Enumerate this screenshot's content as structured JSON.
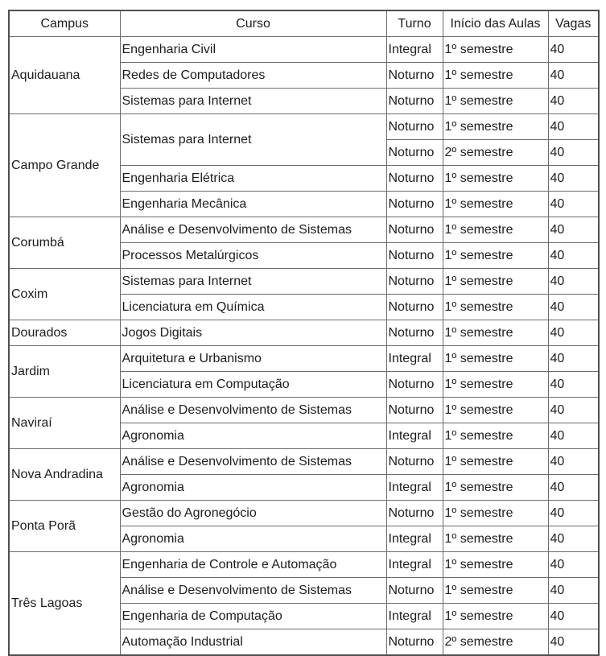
{
  "table": {
    "columns": [
      "Campus",
      "Curso",
      "Turno",
      "Início das Aulas",
      "Vagas"
    ],
    "groups": [
      {
        "campus": "Aquidauana",
        "rows": [
          {
            "curso": "Engenharia Civil",
            "turno": "Integral",
            "inicio": "1º semestre",
            "vagas": "40"
          },
          {
            "curso": "Redes de Computadores",
            "turno": "Noturno",
            "inicio": "1º semestre",
            "vagas": "40"
          },
          {
            "curso": "Sistemas para Internet",
            "turno": "Noturno",
            "inicio": "1º semestre",
            "vagas": "40"
          }
        ]
      },
      {
        "campus": "Campo Grande",
        "rows": [
          {
            "curso": "Sistemas para Internet",
            "curso_rowspan": 2,
            "turno": "Noturno",
            "inicio": "1º semestre",
            "vagas": "40"
          },
          {
            "curso": null,
            "turno": "Noturno",
            "inicio": "2º semestre",
            "vagas": "40"
          },
          {
            "curso": "Engenharia Elétrica",
            "turno": "Noturno",
            "inicio": "1º semestre",
            "vagas": "40"
          },
          {
            "curso": "Engenharia Mecânica",
            "turno": "Noturno",
            "inicio": "1º semestre",
            "vagas": "40"
          }
        ]
      },
      {
        "campus": "Corumbá",
        "rows": [
          {
            "curso": "Análise e Desenvolvimento de Sistemas",
            "turno": "Noturno",
            "inicio": "1º semestre",
            "vagas": "40"
          },
          {
            "curso": "Processos Metalúrgicos",
            "turno": "Noturno",
            "inicio": "1º semestre",
            "vagas": "40"
          }
        ]
      },
      {
        "campus": "Coxim",
        "rows": [
          {
            "curso": "Sistemas para Internet",
            "turno": "Noturno",
            "inicio": "1º semestre",
            "vagas": "40"
          },
          {
            "curso": "Licenciatura em Química",
            "turno": "Noturno",
            "inicio": "1º semestre",
            "vagas": "40"
          }
        ]
      },
      {
        "campus": "Dourados",
        "rows": [
          {
            "curso": "Jogos Digitais",
            "turno": "Noturno",
            "inicio": "1º semestre",
            "vagas": "40"
          }
        ]
      },
      {
        "campus": "Jardim",
        "rows": [
          {
            "curso": "Arquitetura e Urbanismo",
            "turno": "Integral",
            "inicio": "1º semestre",
            "vagas": "40"
          },
          {
            "curso": "Licenciatura em Computação",
            "turno": "Noturno",
            "inicio": "1º semestre",
            "vagas": "40"
          }
        ]
      },
      {
        "campus": "Naviraí",
        "rows": [
          {
            "curso": "Análise e Desenvolvimento de Sistemas",
            "turno": "Noturno",
            "inicio": "1º semestre",
            "vagas": "40"
          },
          {
            "curso": "Agronomia",
            "turno": "Integral",
            "inicio": "1º semestre",
            "vagas": "40"
          }
        ]
      },
      {
        "campus": "Nova Andradina",
        "rows": [
          {
            "curso": "Análise e Desenvolvimento de Sistemas",
            "turno": "Noturno",
            "inicio": "1º semestre",
            "vagas": "40"
          },
          {
            "curso": "Agronomia",
            "turno": "Integral",
            "inicio": "1º semestre",
            "vagas": "40"
          }
        ]
      },
      {
        "campus": "Ponta Porã",
        "rows": [
          {
            "curso": "Gestão do Agronegócio",
            "turno": "Noturno",
            "inicio": "1º semestre",
            "vagas": "40"
          },
          {
            "curso": "Agronomia",
            "turno": "Integral",
            "inicio": "1º semestre",
            "vagas": "40"
          }
        ]
      },
      {
        "campus": "Três Lagoas",
        "rows": [
          {
            "curso": "Engenharia de Controle e Automação",
            "turno": "Integral",
            "inicio": "1º semestre",
            "vagas": "40"
          },
          {
            "curso": "Análise e Desenvolvimento de Sistemas",
            "turno": "Noturno",
            "inicio": "1º semestre",
            "vagas": "40"
          },
          {
            "curso": "Engenharia de Computação",
            "turno": "Integral",
            "inicio": "1º semestre",
            "vagas": "40"
          },
          {
            "curso": "Automação Industrial",
            "turno": "Noturno",
            "inicio": "2º semestre",
            "vagas": "40"
          }
        ]
      }
    ],
    "colors": {
      "border_inner": "#6b6b6b",
      "border_outer": "#4f4f4f",
      "text": "#1d1d1d",
      "background": "#ffffff"
    }
  }
}
